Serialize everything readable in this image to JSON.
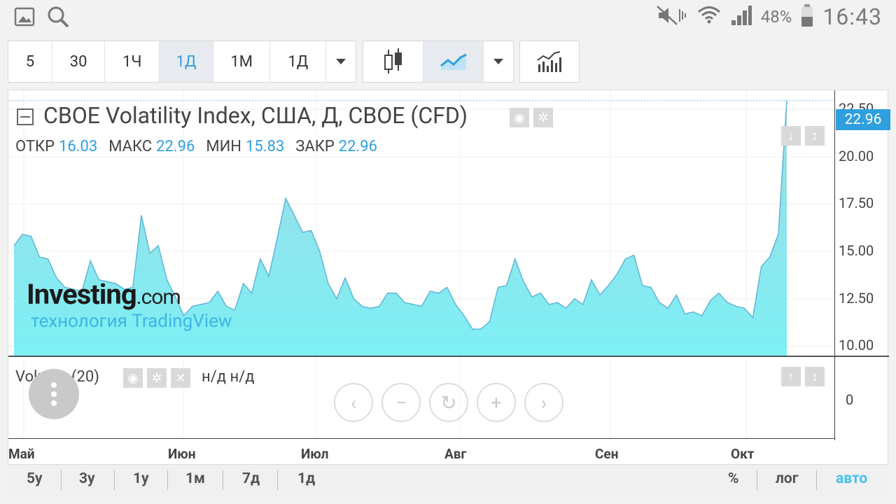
{
  "statusbar": {
    "battery": "48%",
    "time": "16:43"
  },
  "toolbar": {
    "intervals": [
      "5",
      "30",
      "1Ч",
      "1Д",
      "1М",
      "1Д"
    ],
    "active_interval_index": 3
  },
  "chart": {
    "title": "CBOE Volatility Index, США, Д, CBOE (CFD)",
    "ohlc": [
      {
        "label": "ОТКР",
        "value": "16.03"
      },
      {
        "label": "МАКС",
        "value": "22.96"
      },
      {
        "label": "МИН",
        "value": "15.83"
      },
      {
        "label": "ЗАКР",
        "value": "22.96"
      }
    ],
    "last_price": "22.96",
    "y_ticks": [
      "22.50",
      "20.00",
      "17.50",
      "15.00",
      "12.50",
      "10.00"
    ],
    "x_ticks": [
      "Май",
      "Июн",
      "Июл",
      "Авг",
      "Сен",
      "Окт"
    ],
    "logo_main": "Investing",
    "logo_com": ".com",
    "logo_sub": "технология TradingView",
    "volume_label": "Volume (20)",
    "volume_na": "н/д  н/д",
    "volume_zero": "0",
    "accent_color": "#2f9fdf",
    "area_color": "#7ee8f2"
  },
  "chart_data": {
    "type": "area",
    "title": "CBOE Volatility Index, США, Д, CBOE (CFD)",
    "xlabel": "",
    "ylabel": "",
    "ylim": [
      9.5,
      23.5
    ],
    "x_ticks": [
      "Май",
      "Июн",
      "Июл",
      "Авг",
      "Сен",
      "Окт"
    ],
    "values": [
      15.3,
      15.9,
      15.8,
      14.7,
      14.6,
      13.6,
      13.1,
      13.0,
      12.9,
      14.5,
      13.5,
      13.4,
      13.3,
      13.0,
      13.1,
      16.9,
      14.9,
      15.3,
      13.5,
      12.6,
      11.6,
      12.1,
      12.2,
      12.3,
      12.9,
      12.1,
      11.9,
      13.3,
      12.8,
      14.6,
      13.7,
      15.7,
      17.8,
      16.9,
      16.0,
      16.1,
      15.0,
      13.3,
      12.5,
      13.6,
      12.5,
      12.1,
      12.0,
      12.1,
      12.8,
      12.8,
      12.3,
      12.2,
      12.1,
      12.9,
      12.8,
      13.1,
      12.2,
      11.6,
      10.9,
      10.9,
      11.3,
      13.1,
      13.2,
      14.6,
      13.4,
      12.6,
      12.8,
      12.2,
      12.3,
      12.0,
      12.5,
      12.2,
      13.5,
      12.7,
      13.2,
      13.8,
      14.6,
      14.8,
      13.2,
      13.1,
      12.3,
      12.0,
      12.7,
      11.7,
      11.8,
      11.6,
      12.4,
      12.8,
      12.3,
      12.1,
      12.0,
      11.5,
      14.2,
      14.7,
      15.9,
      22.96
    ],
    "grid": true
  }
}
